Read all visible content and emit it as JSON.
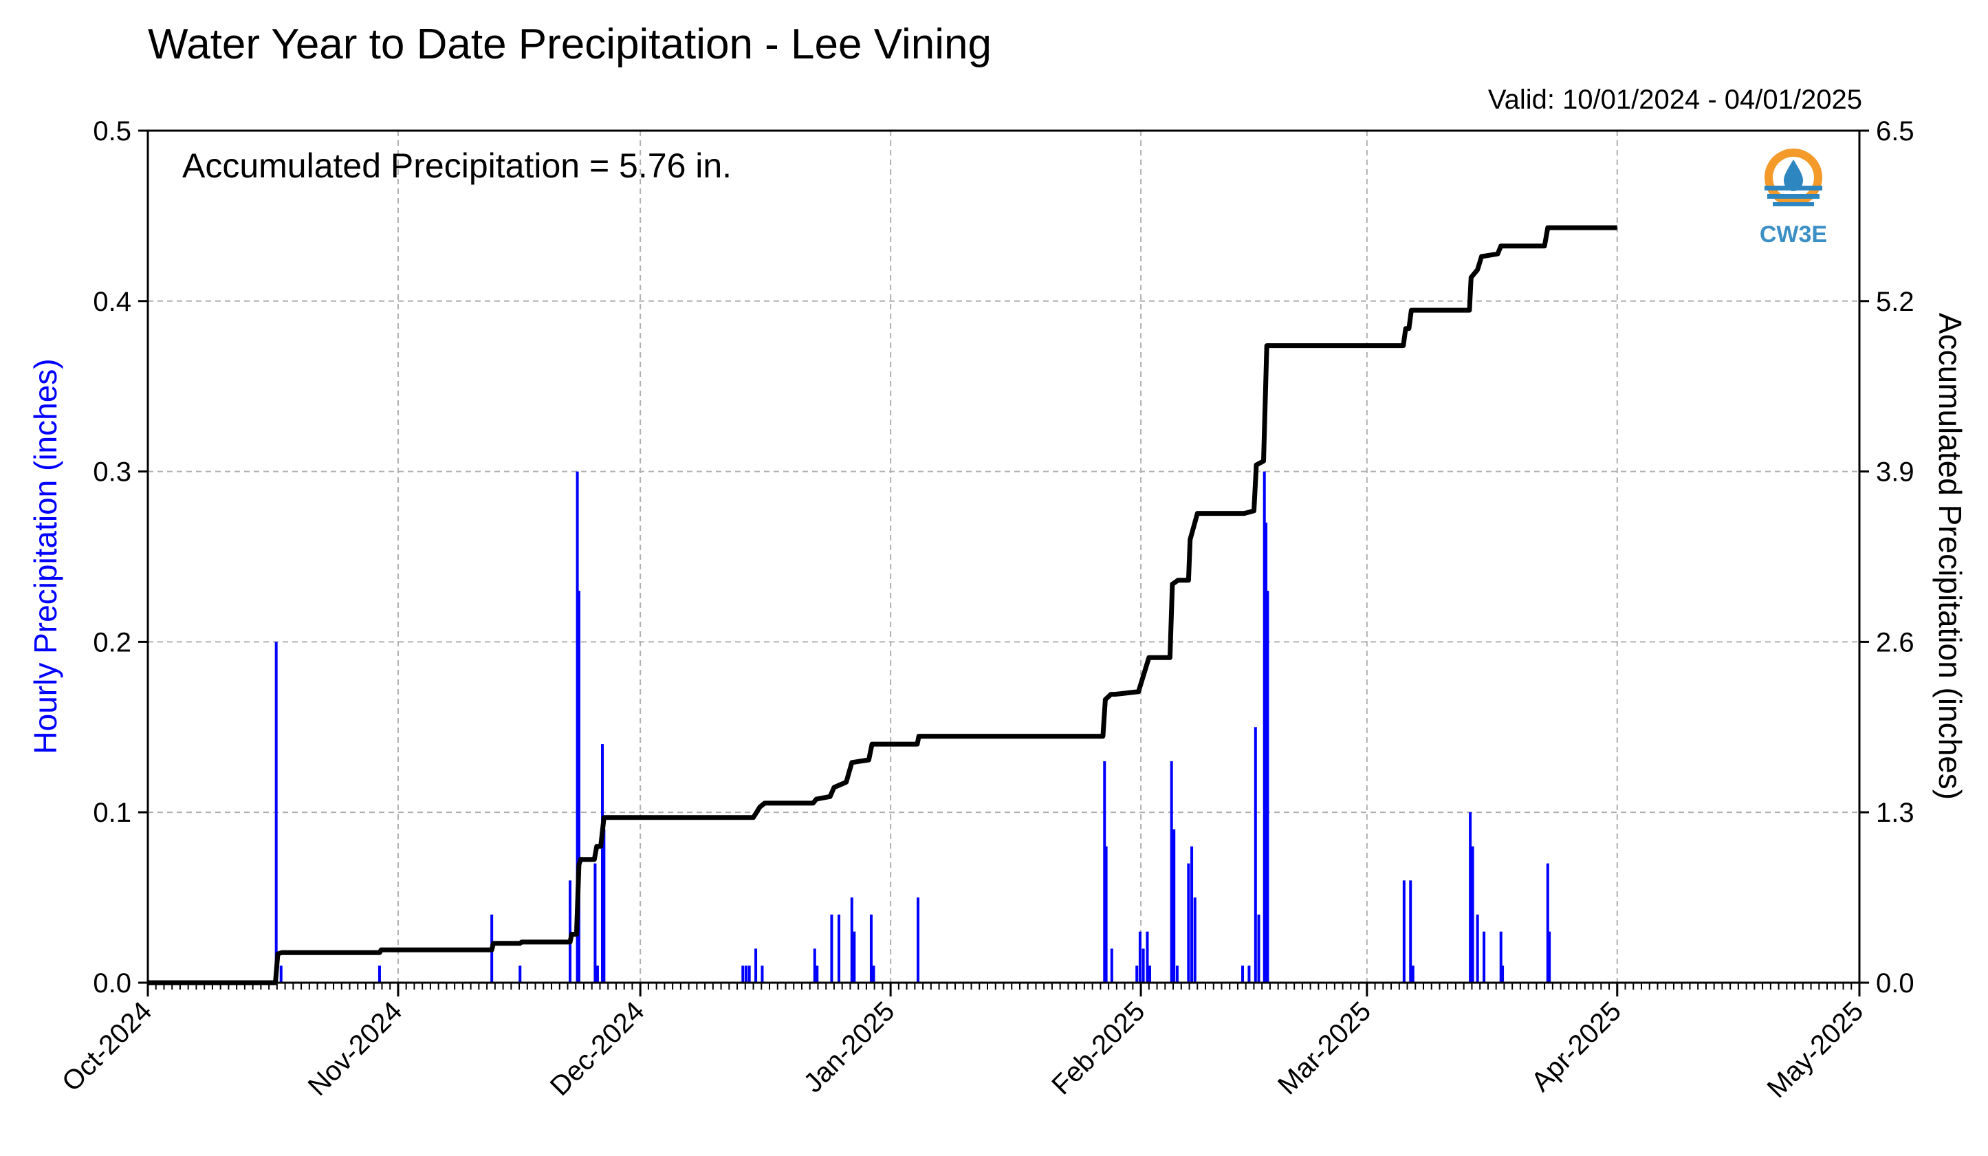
{
  "chart_data": {
    "type": "bar",
    "title": "Water Year to Date Precipitation - Lee Vining",
    "valid_text": "Valid: 10/01/2024 - 04/01/2025",
    "annotation": "Accumulated Precipitation = 5.76 in.",
    "ylabel": "Hourly Precipitation (inches)",
    "ylabel_right": "Accumulated Precipitation (inches)",
    "ylim": [
      0,
      0.5
    ],
    "ylim_right": [
      0,
      6.5
    ],
    "yticks": [
      "0.0",
      "0.1",
      "0.2",
      "0.3",
      "0.4",
      "0.5"
    ],
    "yticks_right": [
      "0.0",
      "1.3",
      "2.6",
      "3.9",
      "5.2",
      "6.5"
    ],
    "xlim_days": [
      0,
      212
    ],
    "xtick_labels": [
      "Oct-2024",
      "Nov-2024",
      "Dec-2024",
      "Jan-2025",
      "Feb-2025",
      "Mar-2025",
      "Apr-2025",
      "May-2025"
    ],
    "xtick_days": [
      0,
      31,
      61,
      92,
      123,
      151,
      182,
      212
    ],
    "grid": true,
    "bar_color": "#0000ff",
    "line_color": "#000000",
    "series": [
      {
        "name": "Hourly Precipitation",
        "type": "bar",
        "points": [
          [
            15.9,
            0.2
          ],
          [
            16.5,
            0.01
          ],
          [
            28.7,
            0.01
          ],
          [
            42.6,
            0.04
          ],
          [
            46.1,
            0.01
          ],
          [
            52.3,
            0.06
          ],
          [
            53.2,
            0.3
          ],
          [
            53.4,
            0.23
          ],
          [
            55.4,
            0.07
          ],
          [
            55.7,
            0.01
          ],
          [
            56.3,
            0.14
          ],
          [
            56.5,
            0.09
          ],
          [
            73.7,
            0.01
          ],
          [
            74.1,
            0.01
          ],
          [
            74.5,
            0.01
          ],
          [
            75.3,
            0.02
          ],
          [
            76.1,
            0.01
          ],
          [
            82.6,
            0.02
          ],
          [
            82.9,
            0.01
          ],
          [
            84.7,
            0.04
          ],
          [
            85.6,
            0.04
          ],
          [
            87.2,
            0.05
          ],
          [
            87.5,
            0.03
          ],
          [
            89.6,
            0.04
          ],
          [
            89.9,
            0.01
          ],
          [
            95.4,
            0.05
          ],
          [
            118.5,
            0.13
          ],
          [
            118.7,
            0.08
          ],
          [
            119.4,
            0.02
          ],
          [
            122.5,
            0.01
          ],
          [
            122.9,
            0.03
          ],
          [
            123.3,
            0.02
          ],
          [
            123.8,
            0.03
          ],
          [
            124.1,
            0.01
          ],
          [
            126.8,
            0.13
          ],
          [
            127.1,
            0.09
          ],
          [
            127.5,
            0.01
          ],
          [
            128.9,
            0.07
          ],
          [
            129.3,
            0.08
          ],
          [
            129.7,
            0.05
          ],
          [
            135.6,
            0.01
          ],
          [
            136.4,
            0.01
          ],
          [
            137.2,
            0.15
          ],
          [
            137.6,
            0.04
          ],
          [
            138.3,
            0.3
          ],
          [
            138.5,
            0.27
          ],
          [
            138.7,
            0.23
          ],
          [
            155.6,
            0.06
          ],
          [
            156.4,
            0.06
          ],
          [
            156.7,
            0.01
          ],
          [
            163.8,
            0.1
          ],
          [
            164.1,
            0.08
          ],
          [
            164.7,
            0.04
          ],
          [
            165.5,
            0.03
          ],
          [
            167.6,
            0.03
          ],
          [
            167.8,
            0.01
          ],
          [
            173.4,
            0.07
          ],
          [
            173.6,
            0.03
          ]
        ]
      },
      {
        "name": "Accumulated Precipitation",
        "type": "line",
        "points": [
          [
            0,
            0
          ],
          [
            15.8,
            0
          ],
          [
            16.1,
            0.22
          ],
          [
            16.6,
            0.23
          ],
          [
            28.7,
            0.23
          ],
          [
            28.9,
            0.25
          ],
          [
            42.6,
            0.25
          ],
          [
            42.8,
            0.3
          ],
          [
            46.1,
            0.3
          ],
          [
            46.3,
            0.31
          ],
          [
            52.3,
            0.31
          ],
          [
            52.5,
            0.37
          ],
          [
            53.1,
            0.37
          ],
          [
            53.4,
            0.9
          ],
          [
            53.6,
            0.94
          ],
          [
            55.3,
            0.94
          ],
          [
            55.6,
            1.04
          ],
          [
            56.1,
            1.04
          ],
          [
            56.5,
            1.26
          ],
          [
            75.0,
            1.26
          ],
          [
            75.4,
            1.3
          ],
          [
            75.8,
            1.34
          ],
          [
            76.4,
            1.37
          ],
          [
            82.4,
            1.37
          ],
          [
            82.8,
            1.4
          ],
          [
            84.5,
            1.42
          ],
          [
            85.0,
            1.49
          ],
          [
            86.5,
            1.53
          ],
          [
            87.2,
            1.68
          ],
          [
            89.3,
            1.7
          ],
          [
            89.7,
            1.82
          ],
          [
            95.3,
            1.82
          ],
          [
            95.5,
            1.88
          ],
          [
            118.3,
            1.88
          ],
          [
            118.6,
            2.16
          ],
          [
            119.3,
            2.2
          ],
          [
            119.8,
            2.2
          ],
          [
            122.7,
            2.22
          ],
          [
            123.4,
            2.36
          ],
          [
            124.0,
            2.48
          ],
          [
            126.6,
            2.48
          ],
          [
            126.9,
            3.04
          ],
          [
            127.6,
            3.07
          ],
          [
            128.9,
            3.07
          ],
          [
            129.1,
            3.38
          ],
          [
            130.0,
            3.58
          ],
          [
            135.8,
            3.58
          ],
          [
            136.4,
            3.59
          ],
          [
            137.0,
            3.6
          ],
          [
            137.3,
            3.95
          ],
          [
            138.2,
            3.98
          ],
          [
            138.6,
            4.86
          ],
          [
            155.5,
            4.86
          ],
          [
            155.8,
            4.99
          ],
          [
            156.2,
            4.99
          ],
          [
            156.5,
            5.13
          ],
          [
            163.7,
            5.13
          ],
          [
            163.9,
            5.38
          ],
          [
            164.7,
            5.44
          ],
          [
            165.2,
            5.54
          ],
          [
            167.2,
            5.56
          ],
          [
            167.6,
            5.62
          ],
          [
            173.0,
            5.62
          ],
          [
            173.4,
            5.76
          ],
          [
            182.0,
            5.76
          ]
        ]
      }
    ]
  },
  "logo": {
    "name": "cw3e-logo",
    "text": "CW3E",
    "colors": {
      "ring": "#f39a2b",
      "wave": "#2e86c1",
      "text": "#3b8fc4"
    }
  }
}
